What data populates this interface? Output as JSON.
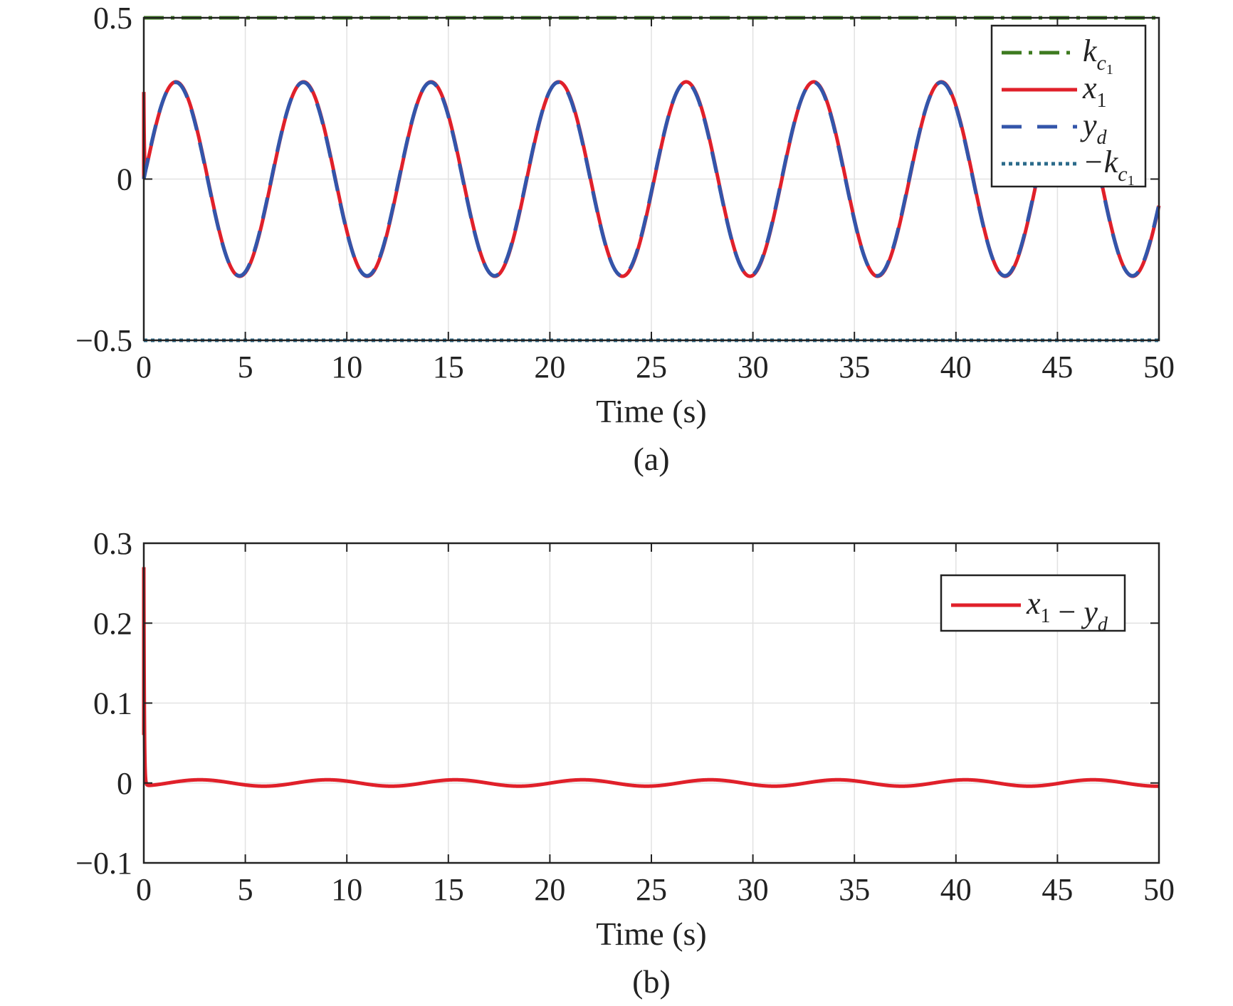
{
  "chart_data": [
    {
      "type": "line",
      "caption": "(a)",
      "xlabel": "Time (s)",
      "ylabel": "",
      "xlim": [
        0,
        50
      ],
      "ylim": [
        -0.5,
        0.5
      ],
      "xticks": [
        0,
        5,
        10,
        15,
        20,
        25,
        30,
        35,
        40,
        45,
        50
      ],
      "yticks": [
        -0.5,
        0,
        0.5
      ],
      "ytick_labels": [
        "−0.5",
        "0",
        "0.5"
      ],
      "grid": true,
      "legend_position": "top-right",
      "series": [
        {
          "name": "k_c1",
          "legend_main": "k",
          "legend_sub": "c",
          "legend_subsub": "1",
          "color": "#3d7a1f",
          "style": "dash-dot",
          "kind": "constant",
          "value": 0.5
        },
        {
          "name": "x1",
          "legend_main": "x",
          "legend_sub": "1",
          "color": "#e0202a",
          "style": "solid",
          "kind": "tracking_output",
          "amplitude": 0.3,
          "omega": 1.0,
          "initial_value": 0.27
        },
        {
          "name": "y_d",
          "legend_main": "y",
          "legend_sub": "d",
          "color": "#3355aa",
          "style": "dashed",
          "kind": "sine",
          "amplitude": 0.3,
          "omega": 1.0
        },
        {
          "name": "-k_c1",
          "legend_main": "−k",
          "legend_sub": "c",
          "legend_subsub": "1",
          "color": "#2a6a8a",
          "style": "dotted",
          "kind": "constant",
          "value": -0.5
        }
      ]
    },
    {
      "type": "line",
      "caption": "(b)",
      "xlabel": "Time (s)",
      "ylabel": "",
      "xlim": [
        0,
        50
      ],
      "ylim": [
        -0.1,
        0.3
      ],
      "xticks": [
        0,
        5,
        10,
        15,
        20,
        25,
        30,
        35,
        40,
        45,
        50
      ],
      "yticks": [
        -0.1,
        0,
        0.1,
        0.2,
        0.3
      ],
      "ytick_labels": [
        "−0.1",
        "0",
        "0.1",
        "0.2",
        "0.3"
      ],
      "grid": true,
      "legend_position": "top-right",
      "series": [
        {
          "name": "x1 - y_d",
          "legend_main": "x",
          "legend_sub": "1",
          "legend_tail_op": " − ",
          "legend_tail": "y",
          "legend_tail_sub": "d",
          "color": "#e0202a",
          "style": "solid",
          "kind": "tracking_error",
          "initial_value": 0.27,
          "steady_amplitude": 0.004
        }
      ]
    }
  ]
}
